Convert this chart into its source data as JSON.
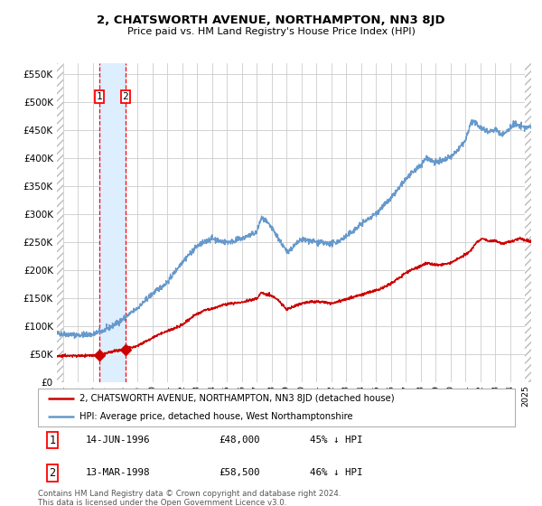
{
  "title": "2, CHATSWORTH AVENUE, NORTHAMPTON, NN3 8JD",
  "subtitle": "Price paid vs. HM Land Registry's House Price Index (HPI)",
  "legend_line1": "2, CHATSWORTH AVENUE, NORTHAMPTON, NN3 8JD (detached house)",
  "legend_line2": "HPI: Average price, detached house, West Northamptonshire",
  "transaction1_date": "14-JUN-1996",
  "transaction1_price": 48000,
  "transaction1_pct": "45% ↓ HPI",
  "transaction2_date": "13-MAR-1998",
  "transaction2_price": 58500,
  "transaction2_pct": "46% ↓ HPI",
  "footnote": "Contains HM Land Registry data © Crown copyright and database right 2024.\nThis data is licensed under the Open Government Licence v3.0.",
  "red_color": "#cc0000",
  "blue_color": "#6699cc",
  "background_color": "#ffffff",
  "grid_color": "#cccccc",
  "hatch_color": "#bbbbbb",
  "highlight_color": "#ddeeff",
  "ylim_min": 0,
  "ylim_max": 570000,
  "yticks": [
    0,
    50000,
    100000,
    150000,
    200000,
    250000,
    300000,
    350000,
    400000,
    450000,
    500000,
    550000
  ],
  "xtick_years": [
    1994,
    1995,
    1996,
    1997,
    1998,
    1999,
    2000,
    2001,
    2002,
    2003,
    2004,
    2005,
    2006,
    2007,
    2008,
    2009,
    2010,
    2011,
    2012,
    2013,
    2014,
    2015,
    2016,
    2017,
    2018,
    2019,
    2020,
    2021,
    2022,
    2023,
    2024,
    2025
  ],
  "transaction1_x": 1996.45,
  "transaction2_x": 1998.2,
  "transaction1_y": 48000,
  "transaction2_y": 58500,
  "xlim_min": 1993.6,
  "xlim_max": 2025.4
}
